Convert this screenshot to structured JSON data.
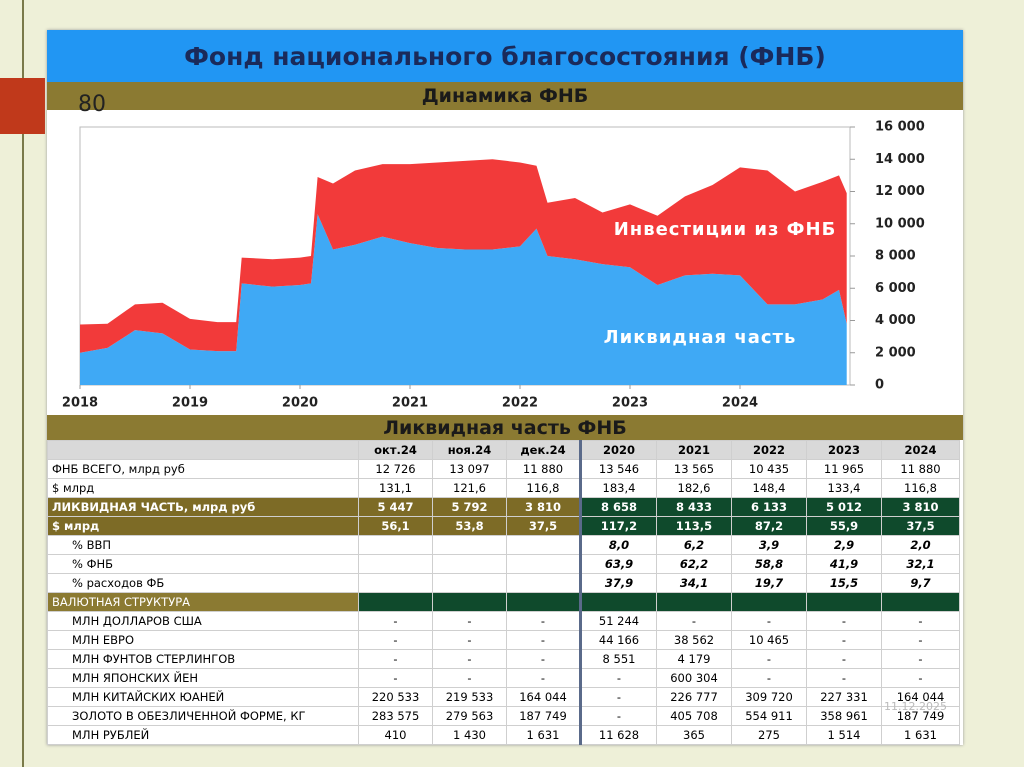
{
  "slide_number": "80",
  "title": "Фонд национального благосостояния (ФНБ)",
  "date": "11.12.2025",
  "chart_data": {
    "type": "stacked_area",
    "title": "Динамика ФНБ",
    "x": [
      2018.0,
      2018.25,
      2018.5,
      2018.75,
      2019.0,
      2019.25,
      2019.42,
      2019.47,
      2019.75,
      2020.0,
      2020.1,
      2020.16,
      2020.3,
      2020.5,
      2020.75,
      2021.0,
      2021.25,
      2021.5,
      2021.75,
      2022.0,
      2022.15,
      2022.25,
      2022.5,
      2022.75,
      2023.0,
      2023.25,
      2023.5,
      2023.75,
      2024.0,
      2024.25,
      2024.5,
      2024.75,
      2024.9,
      2024.97
    ],
    "series": [
      {
        "name": "Ликвидная часть",
        "color": "#3fa9f5",
        "values": [
          2000,
          2300,
          3400,
          3200,
          2200,
          2100,
          2100,
          6300,
          6100,
          6200,
          6300,
          10600,
          8400,
          8700,
          9200,
          8800,
          8500,
          8400,
          8400,
          8600,
          9700,
          8000,
          7800,
          7500,
          7300,
          6200,
          6800,
          6900,
          6800,
          5000,
          5000,
          5300,
          5900,
          3800
        ]
      },
      {
        "name": "Инвестиции из ФНБ",
        "color": "#f23a3a",
        "values": [
          1750,
          1500,
          1600,
          1900,
          1900,
          1800,
          1800,
          1600,
          1700,
          1700,
          1700,
          2300,
          4100,
          4600,
          4500,
          4900,
          5300,
          5500,
          5600,
          5200,
          3900,
          3300,
          3800,
          3200,
          3900,
          4300,
          4900,
          5500,
          6700,
          8300,
          7000,
          7300,
          7100,
          8100
        ]
      }
    ],
    "xlim": [
      2018,
      2025
    ],
    "xticks": [
      2018,
      2019,
      2020,
      2021,
      2022,
      2023,
      2024
    ],
    "ylim": [
      0,
      16000
    ],
    "yticks": [
      0,
      {
        "value": 2000,
        "label": "2 000"
      },
      {
        "value": 4000,
        "label": "4 000"
      },
      {
        "value": 6000,
        "label": "6 000"
      },
      {
        "value": 8000,
        "label": "8 000"
      },
      {
        "value": 10000,
        "label": "10 000"
      },
      {
        "value": 12000,
        "label": "12 000"
      },
      {
        "value": 14000,
        "label": "14 000"
      },
      {
        "value": 16000,
        "label": "16 000"
      }
    ]
  },
  "table": {
    "title": "Ликвидная часть ФНБ",
    "header": [
      "окт.24",
      "ноя.24",
      "дек.24",
      "2020",
      "2021",
      "2022",
      "2023",
      "2024"
    ],
    "rows": [
      [
        "ФНБ ВСЕГО, млрд руб",
        "12 726",
        "13 097",
        "11 880",
        "13 546",
        "13 565",
        "10 435",
        "11 965",
        "11 880"
      ],
      [
        "$ млрд",
        "131,1",
        "121,6",
        "116,8",
        "183,4",
        "182,6",
        "148,4",
        "133,4",
        "116,8"
      ],
      [
        "ЛИКВИДНАЯ ЧАСТЬ, млрд руб",
        "5 447",
        "5 792",
        "3 810",
        "8 658",
        "8 433",
        "6 133",
        "5 012",
        "3 810"
      ],
      [
        "$ млрд",
        "56,1",
        "53,8",
        "37,5",
        "117,2",
        "113,5",
        "87,2",
        "55,9",
        "37,5"
      ],
      [
        "% ВВП",
        null,
        null,
        null,
        "8,0",
        "6,2",
        "3,9",
        "2,9",
        "2,0"
      ],
      [
        "% ФНБ",
        null,
        null,
        null,
        "63,9",
        "62,2",
        "58,8",
        "41,9",
        "32,1"
      ],
      [
        "% расходов ФБ",
        null,
        null,
        null,
        "37,9",
        "34,1",
        "19,7",
        "15,5",
        "9,7"
      ],
      [
        "ВАЛЮТНАЯ СТРУКТУРА"
      ],
      [
        "МЛН ДОЛЛАРОВ США",
        "-",
        "-",
        "-",
        "51 244",
        "-",
        "-",
        "-",
        "-"
      ],
      [
        "МЛН ЕВРО",
        "-",
        "-",
        "-",
        "44 166",
        "38 562",
        "10 465",
        "-",
        "-"
      ],
      [
        "МЛН ФУНТОВ СТЕРЛИНГОВ",
        "-",
        "-",
        "-",
        "8 551",
        "4 179",
        "-",
        "-",
        "-"
      ],
      [
        "МЛН ЯПОНСКИХ ЙЕН",
        "-",
        "-",
        "-",
        "-",
        "600 304",
        "-",
        "-",
        "-"
      ],
      [
        "МЛН КИТАЙСКИХ ЮАНЕЙ",
        "220 533",
        "219 533",
        "164 044",
        "-",
        "226 777",
        "309 720",
        "227 331",
        "164 044"
      ],
      [
        "ЗОЛОТО В ОБЕЗЛИЧЕННОЙ ФОРМЕ, КГ",
        "283 575",
        "279 563",
        "187 749",
        "-",
        "405 708",
        "554 911",
        "358 961",
        "187 749"
      ],
      [
        "МЛН РУБЛЕЙ",
        "410",
        "1 430",
        "1 631",
        "11 628",
        "365",
        "275",
        "1 514",
        "1 631"
      ]
    ]
  }
}
